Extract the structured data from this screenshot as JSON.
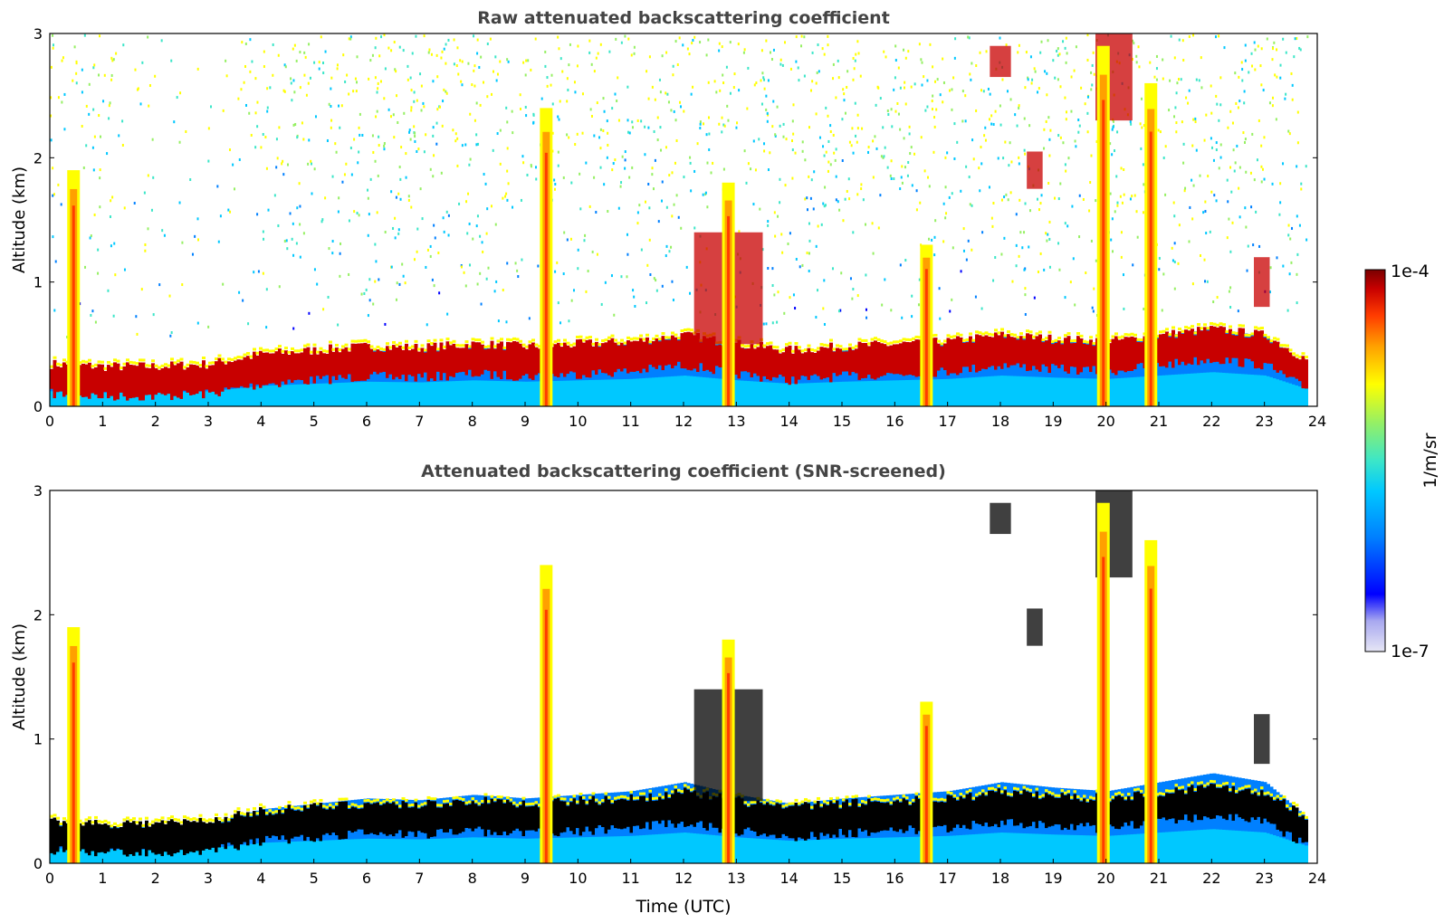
{
  "chart_data": [
    {
      "type": "heatmap",
      "title": "Raw attenuated backscattering coefficient",
      "xlabel": "",
      "ylabel": "Altitude (km)",
      "xlim": [
        0,
        24
      ],
      "ylim": [
        0,
        3
      ],
      "xticks": [
        "0",
        "1",
        "2",
        "3",
        "4",
        "5",
        "6",
        "7",
        "8",
        "9",
        "10",
        "11",
        "12",
        "13",
        "14",
        "15",
        "16",
        "17",
        "18",
        "19",
        "20",
        "21",
        "22",
        "23",
        "24"
      ],
      "yticks": [
        "0",
        "1",
        "2",
        "3"
      ],
      "layers": {
        "boundary_layer_top_km": [
          [
            0,
            0.22
          ],
          [
            1,
            0.2
          ],
          [
            2,
            0.2
          ],
          [
            3,
            0.22
          ],
          [
            4,
            0.3
          ],
          [
            5,
            0.33
          ],
          [
            6,
            0.36
          ],
          [
            7,
            0.35
          ],
          [
            8,
            0.38
          ],
          [
            9,
            0.36
          ],
          [
            10,
            0.38
          ],
          [
            11,
            0.4
          ],
          [
            12,
            0.45
          ],
          [
            13,
            0.38
          ],
          [
            14,
            0.33
          ],
          [
            15,
            0.36
          ],
          [
            16,
            0.38
          ],
          [
            17,
            0.4
          ],
          [
            18,
            0.45
          ],
          [
            19,
            0.42
          ],
          [
            20,
            0.4
          ],
          [
            21,
            0.45
          ],
          [
            22,
            0.5
          ],
          [
            23,
            0.45
          ],
          [
            23.8,
            0.25
          ]
        ],
        "elevated_cloud_layers": [
          {
            "x0": 12.2,
            "x1": 13.5,
            "y0": 0.5,
            "y1": 1.4
          },
          {
            "x0": 22.8,
            "x1": 23.1,
            "y0": 0.8,
            "y1": 1.2
          },
          {
            "x0": 18.5,
            "x1": 18.8,
            "y0": 1.75,
            "y1": 2.05
          },
          {
            "x0": 17.8,
            "x1": 18.2,
            "y0": 2.65,
            "y1": 2.9
          },
          {
            "x0": 19.8,
            "x1": 20.5,
            "y0": 2.3,
            "y1": 3.0
          }
        ],
        "precipitation_shafts": [
          [
            0.45,
            0,
            1.9
          ],
          [
            9.4,
            0,
            2.4
          ],
          [
            12.85,
            0,
            1.8
          ],
          [
            16.6,
            0,
            1.3
          ],
          [
            19.95,
            0,
            2.9
          ],
          [
            20.85,
            0,
            2.6
          ]
        ]
      }
    },
    {
      "type": "heatmap",
      "title": "Attenuated backscattering coefficient (SNR-screened)",
      "xlabel": "Time (UTC)",
      "ylabel": "Altitude (km)",
      "xlim": [
        0,
        24
      ],
      "ylim": [
        0,
        3
      ],
      "xticks": [
        "0",
        "1",
        "2",
        "3",
        "4",
        "5",
        "6",
        "7",
        "8",
        "9",
        "10",
        "11",
        "12",
        "13",
        "14",
        "15",
        "16",
        "17",
        "18",
        "19",
        "20",
        "21",
        "22",
        "23",
        "24"
      ],
      "yticks": [
        "0",
        "1",
        "2",
        "3"
      ],
      "signal_top_km": [
        [
          0,
          0.45
        ],
        [
          0.4,
          0.65
        ],
        [
          0.6,
          0.38
        ],
        [
          1,
          0.35
        ],
        [
          2,
          0.33
        ],
        [
          3,
          0.35
        ],
        [
          4,
          0.5
        ],
        [
          5,
          0.5
        ],
        [
          6,
          0.5
        ],
        [
          7,
          0.5
        ],
        [
          8,
          0.5
        ],
        [
          9,
          0.48
        ],
        [
          10,
          0.52
        ],
        [
          11,
          0.6
        ],
        [
          12,
          0.6
        ],
        [
          13,
          0.58
        ],
        [
          14,
          0.6
        ],
        [
          15,
          0.55
        ],
        [
          16,
          0.55
        ],
        [
          17,
          0.6
        ],
        [
          18,
          0.62
        ],
        [
          19,
          0.55
        ],
        [
          20,
          0.52
        ],
        [
          21,
          0.65
        ],
        [
          22,
          0.68
        ],
        [
          23,
          0.62
        ],
        [
          23.8,
          0.45
        ]
      ]
    }
  ],
  "colorbar": {
    "label": "1/m/sr",
    "max_label": "1e-4",
    "min_label": "1e-7",
    "scale": "log",
    "colors": [
      "#e6e6f5",
      "#a8a8f0",
      "#0000ff",
      "#0080ff",
      "#00c8ff",
      "#3ce6c8",
      "#96f064",
      "#ffff00",
      "#ffa000",
      "#ff3c00",
      "#c80000",
      "#7a0000"
    ]
  }
}
